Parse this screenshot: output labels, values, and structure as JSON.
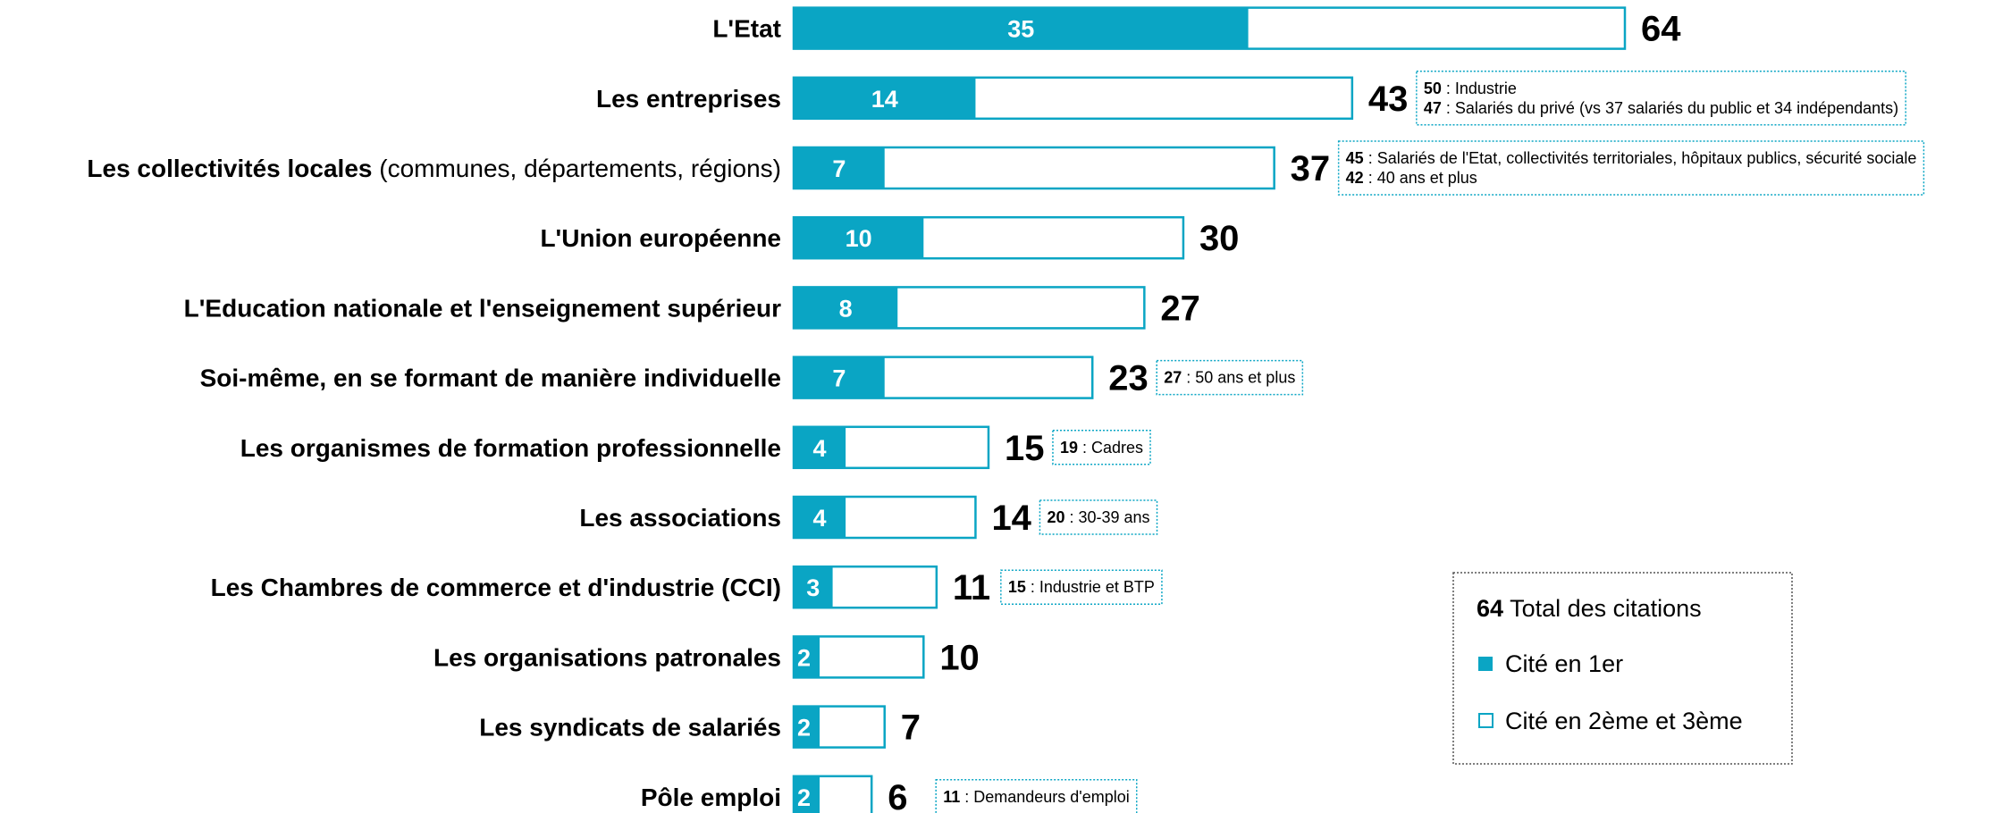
{
  "chart_data": {
    "type": "bar",
    "categories": [
      "L'Etat",
      "Les entreprises",
      "Les collectivités locales",
      "L'Union européenne",
      "L'Education nationale et l'enseignement supérieur",
      "Soi-même, en se formant de manière individuelle",
      "Les organismes de formation professionnelle",
      "Les associations",
      "Les Chambres de commerce et d'industrie (CCI)",
      "Les organisations patronales",
      "Les syndicats de salariés",
      "Pôle emploi"
    ],
    "category_details": [
      null,
      null,
      "(communes, départements, régions)",
      null,
      null,
      null,
      null,
      null,
      null,
      null,
      null,
      null
    ],
    "series": [
      {
        "name": "Cité en 1er",
        "color": "#0aa5c4",
        "values": [
          35,
          14,
          7,
          10,
          8,
          7,
          4,
          4,
          3,
          2,
          2,
          2
        ]
      }
    ],
    "totals": {
      "name": "Total des citations",
      "values": [
        64,
        43,
        37,
        30,
        27,
        23,
        15,
        14,
        11,
        10,
        7,
        6
      ]
    },
    "rest_name": "Cité en 2ème et 3ème",
    "legend_example": 64,
    "annotations": [
      null,
      [
        {
          "value": 50,
          "text": " : Industrie"
        },
        {
          "value": 47,
          "text": " : Salariés du privé (vs 37 salariés du public et 34 indépendants)"
        }
      ],
      [
        {
          "value": 45,
          "text": " : Salariés de l'Etat, collectivités territoriales, hôpitaux publics, sécurité sociale"
        },
        {
          "value": 42,
          "text": " : 40 ans et plus"
        }
      ],
      null,
      null,
      [
        {
          "value": 27,
          "text": " : 50 ans et plus"
        }
      ],
      [
        {
          "value": 19,
          "text": " : Cadres"
        }
      ],
      [
        {
          "value": 20,
          "text": " : 30-39 ans"
        }
      ],
      [
        {
          "value": 15,
          "text": " : Industrie et BTP"
        }
      ],
      null,
      null,
      [
        {
          "value": 11,
          "text": " : Demandeurs d'emploi"
        }
      ]
    ]
  }
}
